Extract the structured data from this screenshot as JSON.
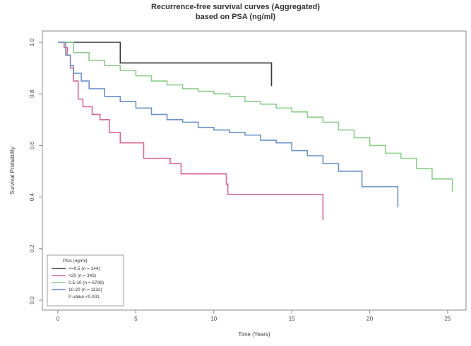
{
  "chart_data": {
    "type": "line",
    "title": "Recurrence-free survival curves (Aggregated)",
    "subtitle": "based on PSA (ng/ml)",
    "xlabel": "Time (Years)",
    "ylabel": "Survival Probability",
    "xlim": [
      0,
      25.5
    ],
    "ylim": [
      0,
      1.0
    ],
    "xticks": [
      0,
      5,
      10,
      15,
      20,
      25
    ],
    "yticks": [
      0.0,
      0.2,
      0.4,
      0.6,
      0.8,
      1.0
    ],
    "grid": false,
    "legend": {
      "title": "PSA (ng/ml)",
      "placement": "bottom-left",
      "note": "P-value <0.001"
    },
    "series": [
      {
        "name": "<=0.5 (n = 144)",
        "color": "#3a3a3a",
        "points": [
          [
            0,
            1.0
          ],
          [
            4.0,
            1.0
          ],
          [
            4.0,
            0.92
          ],
          [
            13.7,
            0.92
          ],
          [
            13.7,
            0.83
          ]
        ]
      },
      {
        "name": ">20 (n = 343)",
        "color": "#d9698b",
        "points": [
          [
            0,
            1.0
          ],
          [
            0.4,
            0.98
          ],
          [
            0.6,
            0.95
          ],
          [
            0.8,
            0.9
          ],
          [
            1.0,
            0.85
          ],
          [
            1.3,
            0.78
          ],
          [
            1.6,
            0.75
          ],
          [
            2.2,
            0.72
          ],
          [
            2.7,
            0.7
          ],
          [
            3.3,
            0.65
          ],
          [
            4.0,
            0.61
          ],
          [
            5.5,
            0.55
          ],
          [
            7.2,
            0.53
          ],
          [
            7.9,
            0.49
          ],
          [
            10.8,
            0.45
          ],
          [
            10.9,
            0.41
          ],
          [
            17.0,
            0.41
          ],
          [
            17.0,
            0.31
          ]
        ]
      },
      {
        "name": "0.5-10 (n = 6799)",
        "color": "#8ccf8c",
        "points": [
          [
            0,
            1.0
          ],
          [
            1,
            0.96
          ],
          [
            2,
            0.93
          ],
          [
            3,
            0.91
          ],
          [
            4,
            0.89
          ],
          [
            5,
            0.87
          ],
          [
            6,
            0.85
          ],
          [
            7,
            0.835
          ],
          [
            8,
            0.82
          ],
          [
            9,
            0.81
          ],
          [
            10,
            0.8
          ],
          [
            11,
            0.79
          ],
          [
            12,
            0.77
          ],
          [
            13,
            0.76
          ],
          [
            14,
            0.745
          ],
          [
            15,
            0.73
          ],
          [
            16,
            0.71
          ],
          [
            17,
            0.69
          ],
          [
            18,
            0.66
          ],
          [
            19,
            0.63
          ],
          [
            20,
            0.6
          ],
          [
            21,
            0.57
          ],
          [
            22,
            0.55
          ],
          [
            23,
            0.51
          ],
          [
            24,
            0.47
          ],
          [
            25.3,
            0.47
          ],
          [
            25.3,
            0.42
          ]
        ]
      },
      {
        "name": "10-20 (n = 1132)",
        "color": "#6b93c9",
        "points": [
          [
            0,
            1.0
          ],
          [
            0.5,
            0.95
          ],
          [
            0.8,
            0.91
          ],
          [
            1.0,
            0.88
          ],
          [
            1.5,
            0.85
          ],
          [
            2,
            0.82
          ],
          [
            3,
            0.79
          ],
          [
            4,
            0.77
          ],
          [
            5,
            0.745
          ],
          [
            6,
            0.72
          ],
          [
            7,
            0.7
          ],
          [
            8,
            0.69
          ],
          [
            9,
            0.67
          ],
          [
            10,
            0.66
          ],
          [
            11,
            0.65
          ],
          [
            12,
            0.64
          ],
          [
            13,
            0.62
          ],
          [
            14,
            0.61
          ],
          [
            15,
            0.58
          ],
          [
            16,
            0.56
          ],
          [
            17,
            0.53
          ],
          [
            18,
            0.5
          ],
          [
            19.5,
            0.5
          ],
          [
            19.5,
            0.44
          ],
          [
            21.8,
            0.44
          ],
          [
            21.8,
            0.36
          ]
        ]
      }
    ]
  }
}
